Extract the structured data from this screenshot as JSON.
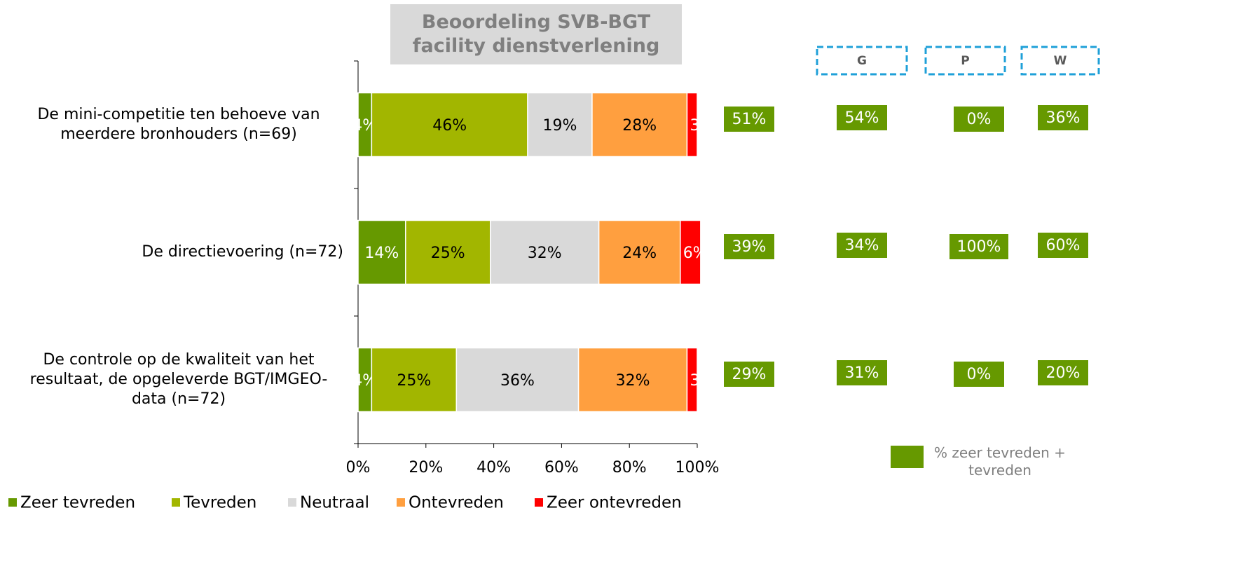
{
  "chart_data": {
    "type": "stacked_bar_horizontal",
    "title": "Beoordeling SVB-BGT facility dienstverlening",
    "categories": [
      "De mini-competitie ten behoeve van meerdere bronhouders (n=69)",
      "De directievoering (n=72)",
      "De controle op de kwaliteit van het resultaat, de opgeleverde BGT/IMGEO-data (n=72)"
    ],
    "series": [
      {
        "name": "Zeer tevreden",
        "color": "#669900",
        "values": [
          4,
          14,
          4
        ],
        "value_labels": [
          "4%",
          "14%",
          "4%"
        ]
      },
      {
        "name": "Tevreden",
        "color": "#a2b600",
        "values": [
          46,
          25,
          25
        ],
        "value_labels": [
          "46%",
          "25%",
          "25%"
        ]
      },
      {
        "name": "Neutraal",
        "color": "#d9d9d9",
        "values": [
          19,
          32,
          36
        ],
        "value_labels": [
          "19%",
          "32%",
          "36%"
        ]
      },
      {
        "name": "Ontevreden",
        "color": "#ff9f3f",
        "values": [
          28,
          24,
          32
        ],
        "value_labels": [
          "28%",
          "24%",
          "32%"
        ]
      },
      {
        "name": "Zeer ontevreden",
        "color": "#ff0000",
        "values": [
          3,
          6,
          3
        ],
        "value_labels": [
          "3%",
          "6%",
          "3%"
        ]
      }
    ],
    "xlim": [
      0,
      100
    ],
    "xticks": [
      {
        "value": 0,
        "label": "0%"
      },
      {
        "value": 20,
        "label": "20%"
      },
      {
        "value": 40,
        "label": "40%"
      },
      {
        "value": 60,
        "label": "60%"
      },
      {
        "value": 80,
        "label": "80%"
      },
      {
        "value": 100,
        "label": "100%"
      }
    ],
    "legend": "bottom",
    "summary": {
      "color": "#669900",
      "total": {
        "values": [
          51,
          39,
          29
        ],
        "value_labels": [
          "51%",
          "39%",
          "29%"
        ]
      },
      "groups": [
        {
          "name": "G",
          "values": [
            54,
            34,
            31
          ],
          "value_labels": [
            "54%",
            "34%",
            "31%"
          ]
        },
        {
          "name": "P",
          "values": [
            0,
            100,
            0
          ],
          "value_labels": [
            "0%",
            "100%",
            "0%"
          ]
        },
        {
          "name": "W",
          "values": [
            36,
            60,
            20
          ],
          "value_labels": [
            "36%",
            "60%",
            "20%"
          ]
        }
      ],
      "legend": "% zeer tevreden + tevreden"
    }
  }
}
